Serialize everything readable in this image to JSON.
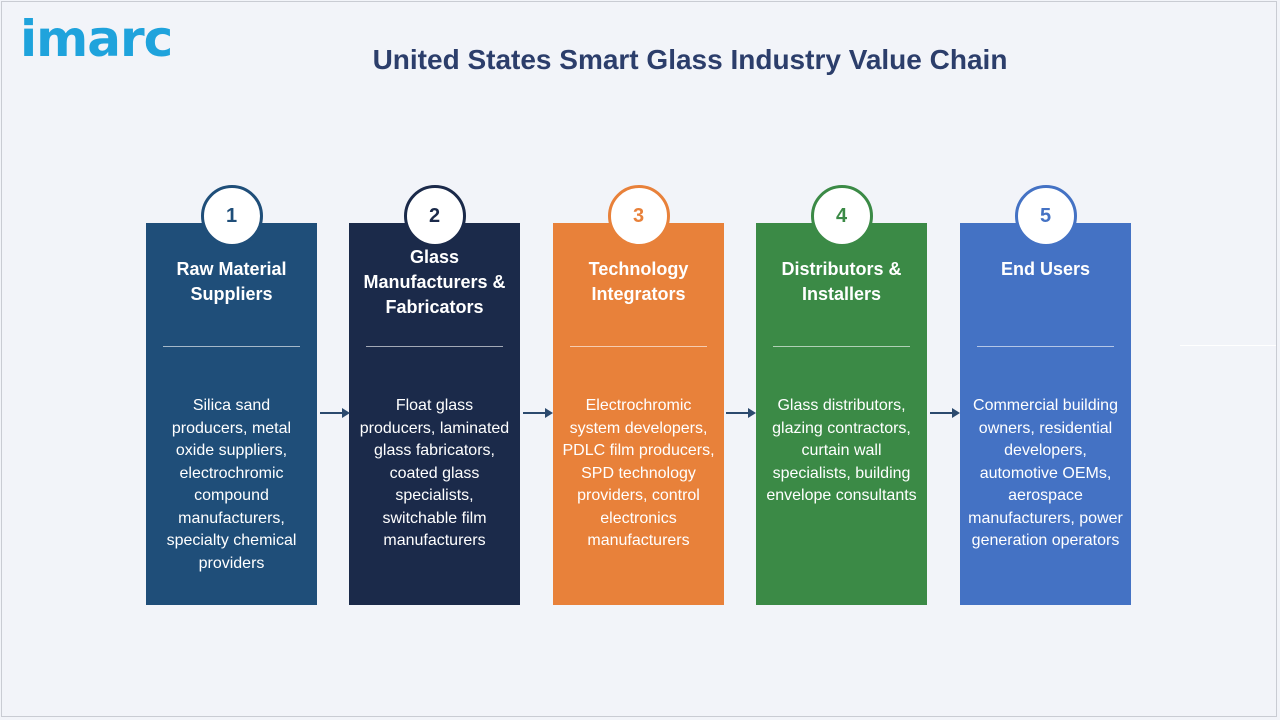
{
  "logo": "imarc",
  "title": "United States Smart Glass Industry Value Chain",
  "stages": [
    {
      "number": "1",
      "title": "Raw Material Suppliers",
      "description": "Silica sand producers, metal oxide suppliers, electrochromic compound manufacturers, specialty chemical providers",
      "color": "#1f4e79"
    },
    {
      "number": "2",
      "title": "Glass Manufacturers & Fabricators",
      "description": "Float glass producers, laminated glass fabricators, coated glass specialists, switchable film manufacturers",
      "color": "#1b2a4a"
    },
    {
      "number": "3",
      "title": "Technology Integrators",
      "description": "Electrochromic system developers, PDLC film producers, SPD technology providers, control electronics manufacturers",
      "color": "#e8813a"
    },
    {
      "number": "4",
      "title": "Distributors & Installers",
      "description": "Glass distributors, glazing contractors, curtain wall specialists, building envelope consultants",
      "color": "#3b8a46"
    },
    {
      "number": "5",
      "title": "End Users",
      "description": "Commercial building owners, residential developers, automotive OEMs, aerospace manufacturers, power generation operators",
      "color": "#4472c4"
    }
  ],
  "arrow_color": "#2c4a6e"
}
